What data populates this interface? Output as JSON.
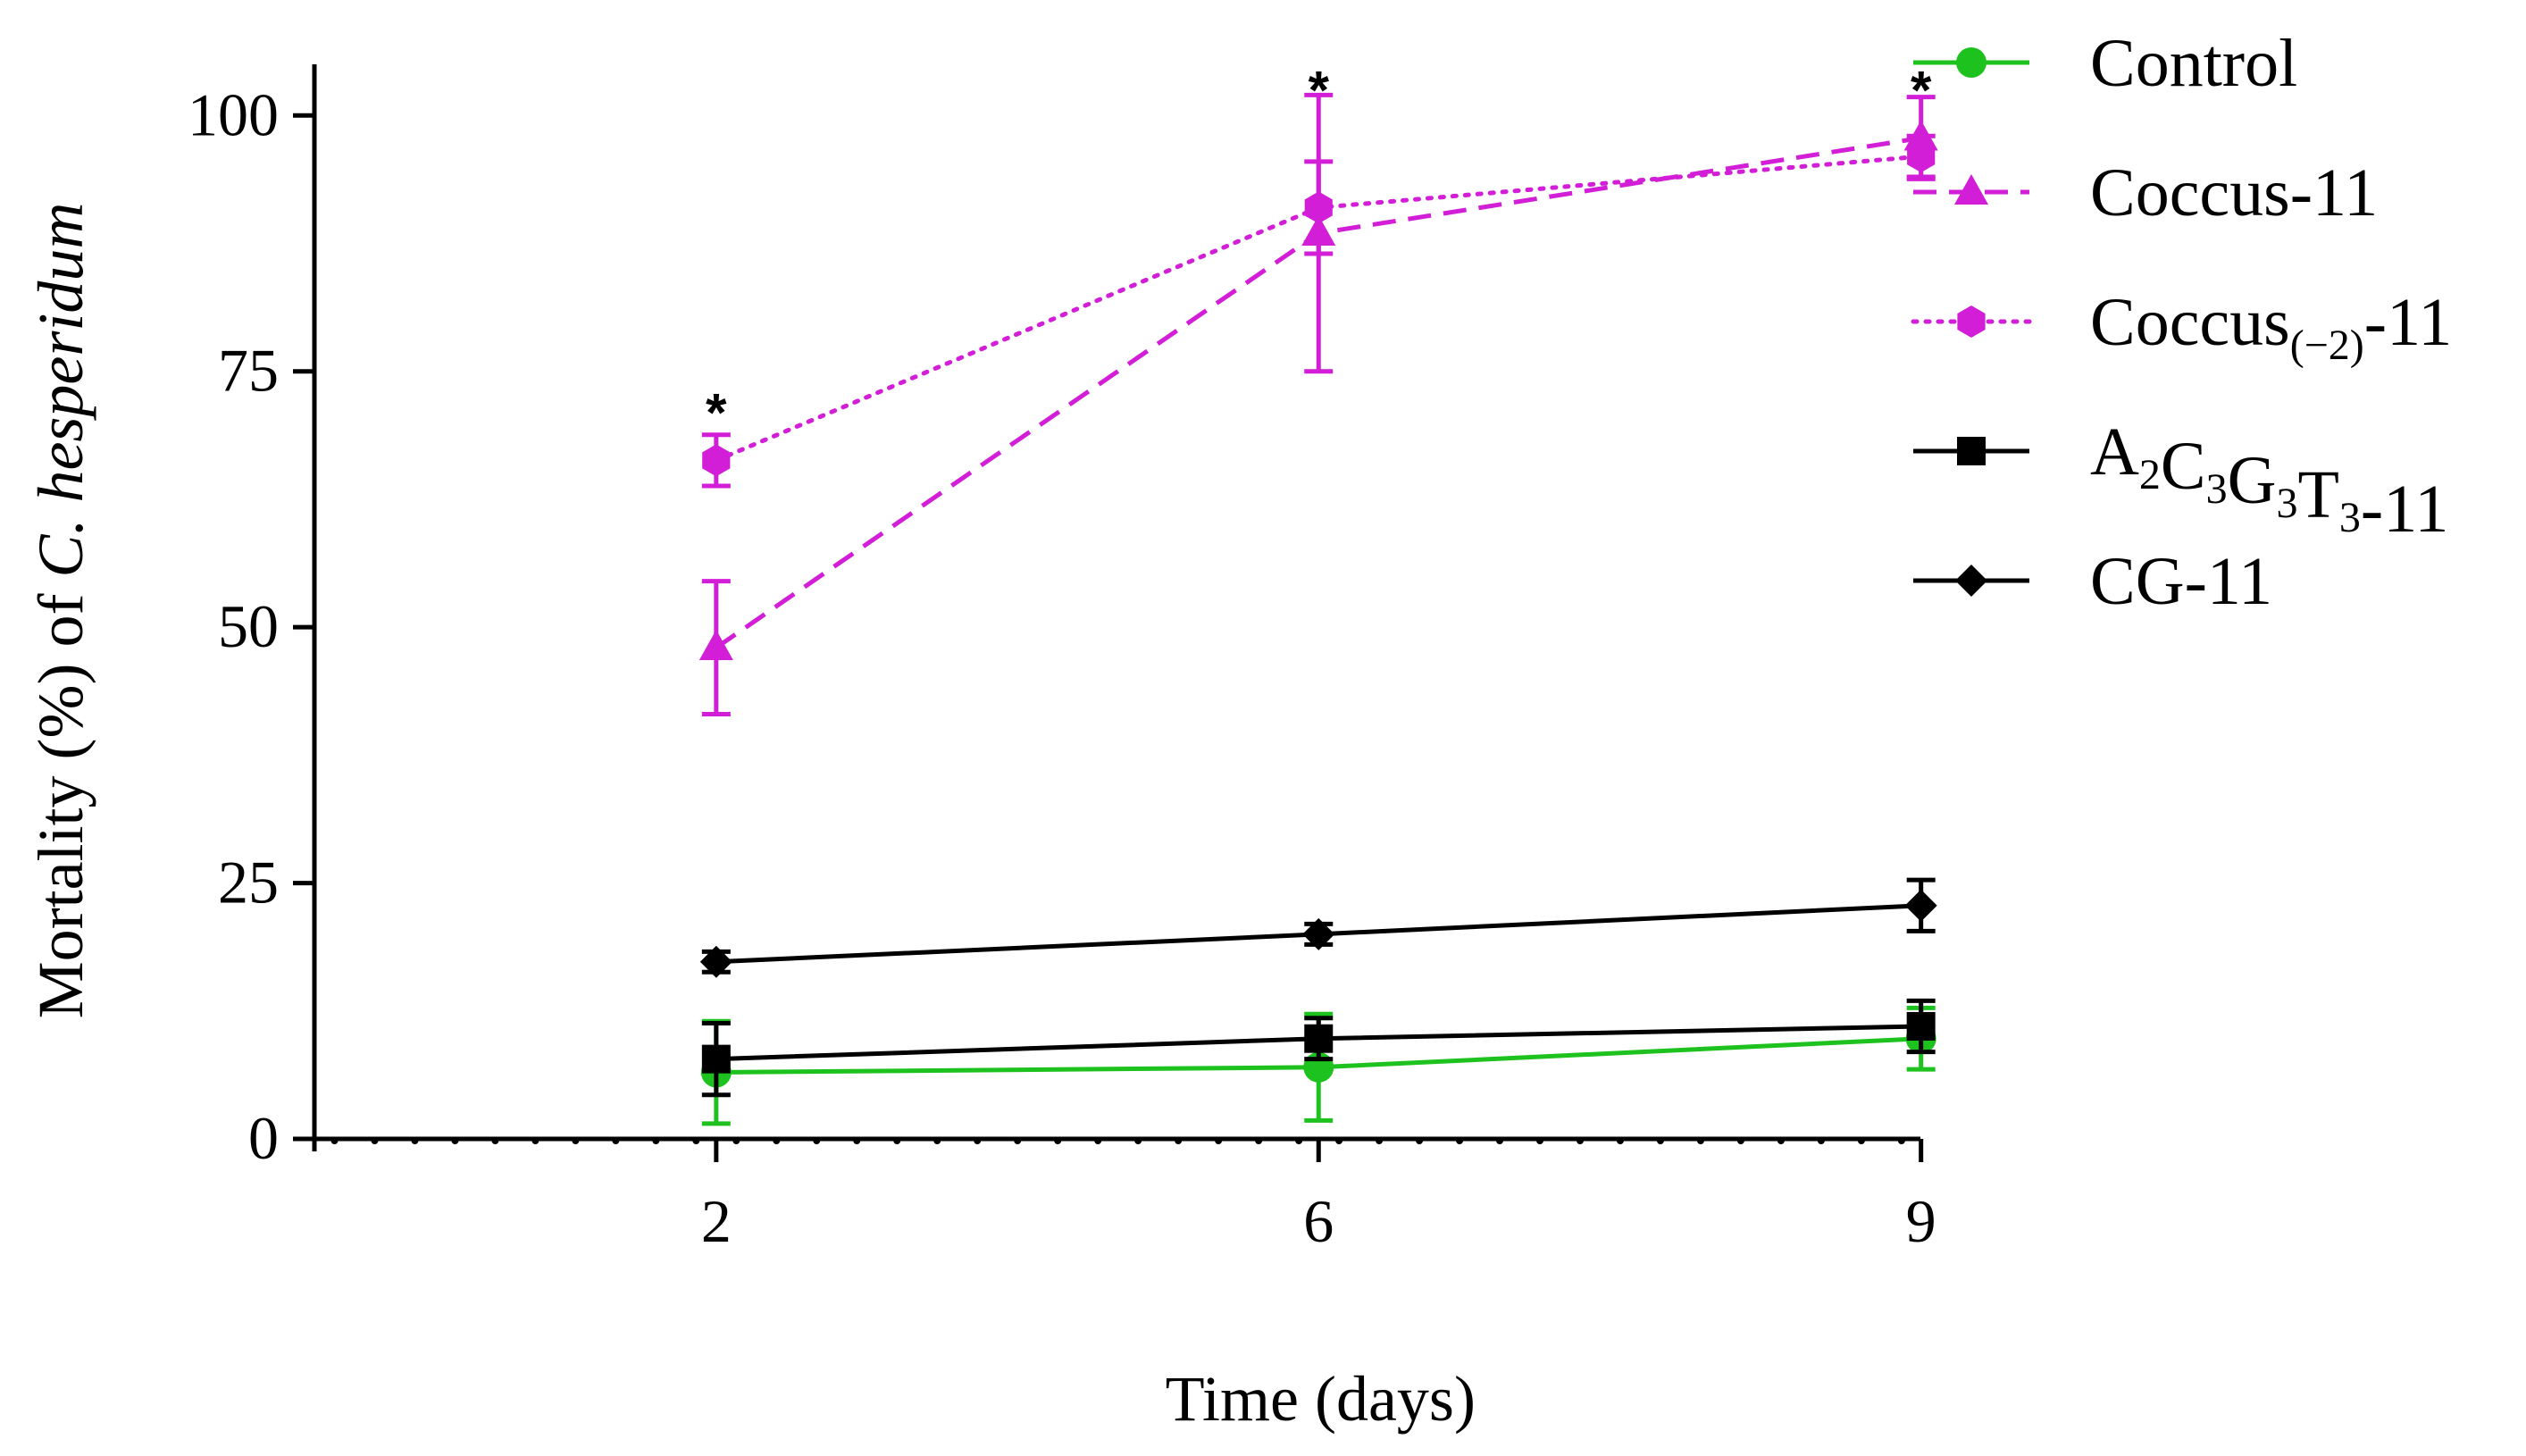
{
  "chart_data": {
    "type": "line",
    "xlabel": "Time (days)",
    "ylabel": {
      "prefix": "Mortality (%) of ",
      "italic": "C. hesperidum"
    },
    "x_axis": {
      "range": [
        -0.667,
        1.999
      ],
      "tick_positions": [
        0,
        1,
        2
      ],
      "tick_labels": [
        "2",
        "6",
        "9"
      ],
      "minor_tick_step": 0.0667
    },
    "y_axis": {
      "range": [
        0,
        105
      ],
      "ticks": [
        0,
        25,
        50,
        75,
        100
      ],
      "tick_labels": [
        "0",
        "25",
        "50",
        "75",
        "100"
      ]
    },
    "categories": [
      "2",
      "6",
      "9"
    ],
    "series": [
      {
        "name": "Control",
        "legend": {
          "base": "Control"
        },
        "color": "#1ec21e",
        "dash": "solid",
        "marker": "circle",
        "values": [
          6.5,
          7.0,
          9.8
        ],
        "errors": [
          5.0,
          5.2,
          3.0
        ]
      },
      {
        "name": "Coccus-11",
        "legend": {
          "base": "Coccus-11"
        },
        "color": "#d21ed6",
        "dash": "dashed",
        "marker": "triangle",
        "values": [
          48.0,
          88.5,
          97.8
        ],
        "errors": [
          6.5,
          13.5,
          4.0
        ]
      },
      {
        "name": "Coccus(−2)-11",
        "legend": {
          "base": "Coccus",
          "sub": "(−2)",
          "suffix": "-11"
        },
        "color": "#d21ed6",
        "dash": "dotted",
        "marker": "hexagon",
        "values": [
          66.3,
          91.0,
          96.0
        ],
        "errors": [
          2.5,
          4.5,
          2.0
        ]
      },
      {
        "name": "A2C3G3T3-11",
        "legend": {
          "parts": [
            [
              "A",
              "2"
            ],
            [
              "C",
              "3"
            ],
            [
              "G",
              "3"
            ],
            [
              "T",
              "3"
            ]
          ],
          "suffix": "-11"
        },
        "color": "#000000",
        "dash": "solid",
        "marker": "square",
        "values": [
          7.8,
          9.8,
          11.0
        ],
        "errors": [
          3.5,
          2.0,
          2.5
        ]
      },
      {
        "name": "CG-11",
        "legend": {
          "base": "CG-11"
        },
        "color": "#000000",
        "dash": "solid",
        "marker": "diamond",
        "values": [
          17.3,
          20.0,
          22.8
        ],
        "errors": [
          1.0,
          1.0,
          2.5
        ]
      }
    ],
    "annotations": [
      {
        "text": "*",
        "x_index": 0,
        "y": 72.5
      },
      {
        "text": "*",
        "x_index": 1,
        "y": 104.0
      },
      {
        "text": "*",
        "x_index": 2,
        "y": 104.0
      }
    ],
    "legend_position": "right"
  }
}
